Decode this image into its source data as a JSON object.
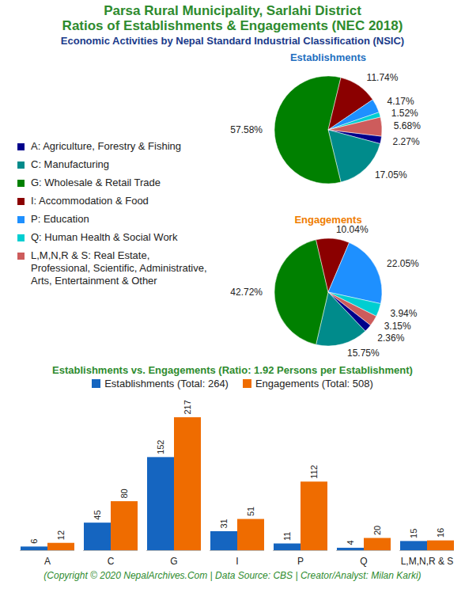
{
  "header": {
    "title": [
      "Parsa Rural Municipality, Sarlahi District",
      "Ratios of Establishments & Engagements (NEC 2018)"
    ],
    "subtitle": "Economic Activities by Nepal Standard Industrial Classification (NSIC)"
  },
  "caption": "(Copyright © 2020 NepalArchives.Com | Data Source: CBS | Creator/Analyst: Milan Karki)",
  "chart_data": [
    {
      "type": "pie",
      "title": "Establishments",
      "categories": [
        "A: Agriculture, Forestry & Fishing",
        "C: Manufacturing",
        "G: Wholesale & Retail Trade",
        "I: Accommodation & Food",
        "P: Education",
        "Q: Human Health & Social Work",
        "L,M,N,R & S: Real Estate, Professional, Scientific, Administrative, Arts, Entertainment & Other"
      ],
      "values": [
        2.27,
        17.05,
        57.58,
        11.74,
        4.17,
        1.52,
        5.68
      ],
      "value_labels": [
        "2.27%",
        "17.05%",
        "57.58%",
        "11.74%",
        "4.17%",
        "1.52%",
        "5.68%"
      ],
      "colors": [
        "#00008b",
        "#008b8b",
        "#008000",
        "#8b0000",
        "#1e90ff",
        "#00ced1",
        "#cd5c5c"
      ],
      "data_labels": true,
      "legend": "left"
    },
    {
      "type": "pie",
      "title": "Engagements",
      "categories": [
        "A: Agriculture, Forestry & Fishing",
        "C: Manufacturing",
        "G: Wholesale & Retail Trade",
        "I: Accommodation & Food",
        "P: Education",
        "Q: Human Health & Social Work",
        "L,M,N,R & S: Real Estate, Professional, Scientific, Administrative, Arts, Entertainment & Other"
      ],
      "values": [
        2.36,
        15.75,
        42.72,
        10.04,
        22.05,
        3.94,
        3.15
      ],
      "value_labels": [
        "2.36%",
        "15.75%",
        "42.72%",
        "10.04%",
        "22.05%",
        "3.94%",
        "3.15%"
      ],
      "colors": [
        "#00008b",
        "#008b8b",
        "#008000",
        "#8b0000",
        "#1e90ff",
        "#00ced1",
        "#cd5c5c"
      ],
      "data_labels": true
    },
    {
      "type": "bar",
      "title": "Establishments vs. Engagements (Ratio: 1.92 Persons per Establishment)",
      "categories": [
        "A",
        "C",
        "G",
        "I",
        "P",
        "Q",
        "L,M,N,R & S"
      ],
      "series": [
        {
          "name": "Establishments (Total: 264)",
          "color": "#1565c0",
          "values": [
            6,
            45,
            152,
            31,
            11,
            4,
            15
          ]
        },
        {
          "name": "Engagements (Total: 508)",
          "color": "#ef6c00",
          "values": [
            12,
            80,
            217,
            51,
            112,
            20,
            16
          ]
        }
      ],
      "ylim": [
        0,
        230
      ],
      "data_labels": true,
      "tick_labels": "x",
      "legend": "top"
    }
  ]
}
